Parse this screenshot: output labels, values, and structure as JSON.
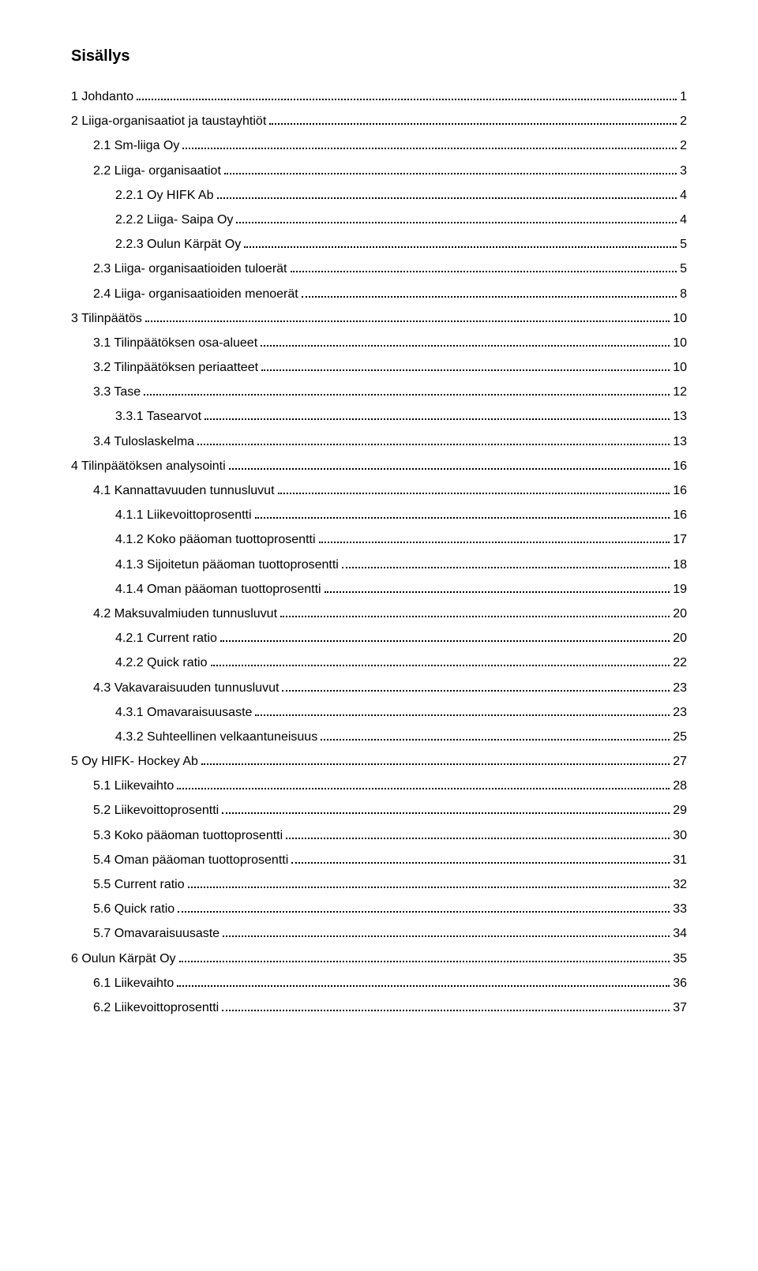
{
  "title": "Sisällys",
  "colors": {
    "text": "#000000",
    "background": "#ffffff",
    "dots": "#000000"
  },
  "typography": {
    "title_fontsize": 20,
    "title_weight": "bold",
    "entry_fontsize": 16,
    "line_height": 1.95,
    "font_family": "Arial"
  },
  "entries": [
    {
      "level": 1,
      "label": "1  Johdanto",
      "page": "1"
    },
    {
      "level": 1,
      "label": "2  Liiga-organisaatiot ja taustayhtiöt",
      "page": "2"
    },
    {
      "level": 2,
      "label": "2.1  Sm-liiga Oy",
      "page": "2"
    },
    {
      "level": 2,
      "label": "2.2  Liiga- organisaatiot",
      "page": "3"
    },
    {
      "level": 3,
      "label": "2.2.1  Oy HIFK Ab",
      "page": "4"
    },
    {
      "level": 3,
      "label": "2.2.2  Liiga- Saipa Oy",
      "page": "4"
    },
    {
      "level": 3,
      "label": "2.2.3  Oulun Kärpät Oy",
      "page": "5"
    },
    {
      "level": 2,
      "label": "2.3  Liiga- organisaatioiden tuloerät",
      "page": "5"
    },
    {
      "level": 2,
      "label": "2.4  Liiga- organisaatioiden menoerät",
      "page": "8"
    },
    {
      "level": 1,
      "label": "3  Tilinpäätös",
      "page": "10"
    },
    {
      "level": 2,
      "label": "3.1  Tilinpäätöksen osa-alueet",
      "page": "10"
    },
    {
      "level": 2,
      "label": "3.2  Tilinpäätöksen periaatteet",
      "page": "10"
    },
    {
      "level": 2,
      "label": "3.3  Tase",
      "page": "12"
    },
    {
      "level": 3,
      "label": "3.3.1  Tasearvot",
      "page": "13"
    },
    {
      "level": 2,
      "label": "3.4  Tuloslaskelma",
      "page": "13"
    },
    {
      "level": 1,
      "label": "4  Tilinpäätöksen analysointi",
      "page": "16"
    },
    {
      "level": 2,
      "label": "4.1  Kannattavuuden tunnusluvut",
      "page": "16"
    },
    {
      "level": 3,
      "label": "4.1.1  Liikevoittoprosentti",
      "page": "16"
    },
    {
      "level": 3,
      "label": "4.1.2  Koko pääoman tuottoprosentti",
      "page": "17"
    },
    {
      "level": 3,
      "label": "4.1.3  Sijoitetun pääoman tuottoprosentti",
      "page": "18"
    },
    {
      "level": 3,
      "label": "4.1.4  Oman pääoman tuottoprosentti",
      "page": "19"
    },
    {
      "level": 2,
      "label": "4.2  Maksuvalmiuden tunnusluvut",
      "page": "20"
    },
    {
      "level": 3,
      "label": "4.2.1  Current ratio",
      "page": "20"
    },
    {
      "level": 3,
      "label": "4.2.2  Quick ratio",
      "page": "22"
    },
    {
      "level": 2,
      "label": "4.3  Vakavaraisuuden tunnusluvut",
      "page": "23"
    },
    {
      "level": 3,
      "label": "4.3.1  Omavaraisuusaste",
      "page": "23"
    },
    {
      "level": 3,
      "label": "4.3.2  Suhteellinen velkaantuneisuus",
      "page": "25"
    },
    {
      "level": 1,
      "label": "5  Oy HIFK- Hockey Ab",
      "page": "27"
    },
    {
      "level": 2,
      "label": "5.1  Liikevaihto",
      "page": "28"
    },
    {
      "level": 2,
      "label": "5.2  Liikevoittoprosentti",
      "page": "29"
    },
    {
      "level": 2,
      "label": "5.3  Koko pääoman tuottoprosentti",
      "page": "30"
    },
    {
      "level": 2,
      "label": "5.4  Oman pääoman tuottoprosentti",
      "page": "31"
    },
    {
      "level": 2,
      "label": "5.5  Current ratio",
      "page": "32"
    },
    {
      "level": 2,
      "label": "5.6  Quick ratio",
      "page": "33"
    },
    {
      "level": 2,
      "label": "5.7  Omavaraisuusaste",
      "page": "34"
    },
    {
      "level": 1,
      "label": "6  Oulun Kärpät Oy",
      "page": "35"
    },
    {
      "level": 2,
      "label": "6.1  Liikevaihto",
      "page": "36"
    },
    {
      "level": 2,
      "label": "6.2  Liikevoittoprosentti",
      "page": "37"
    }
  ]
}
